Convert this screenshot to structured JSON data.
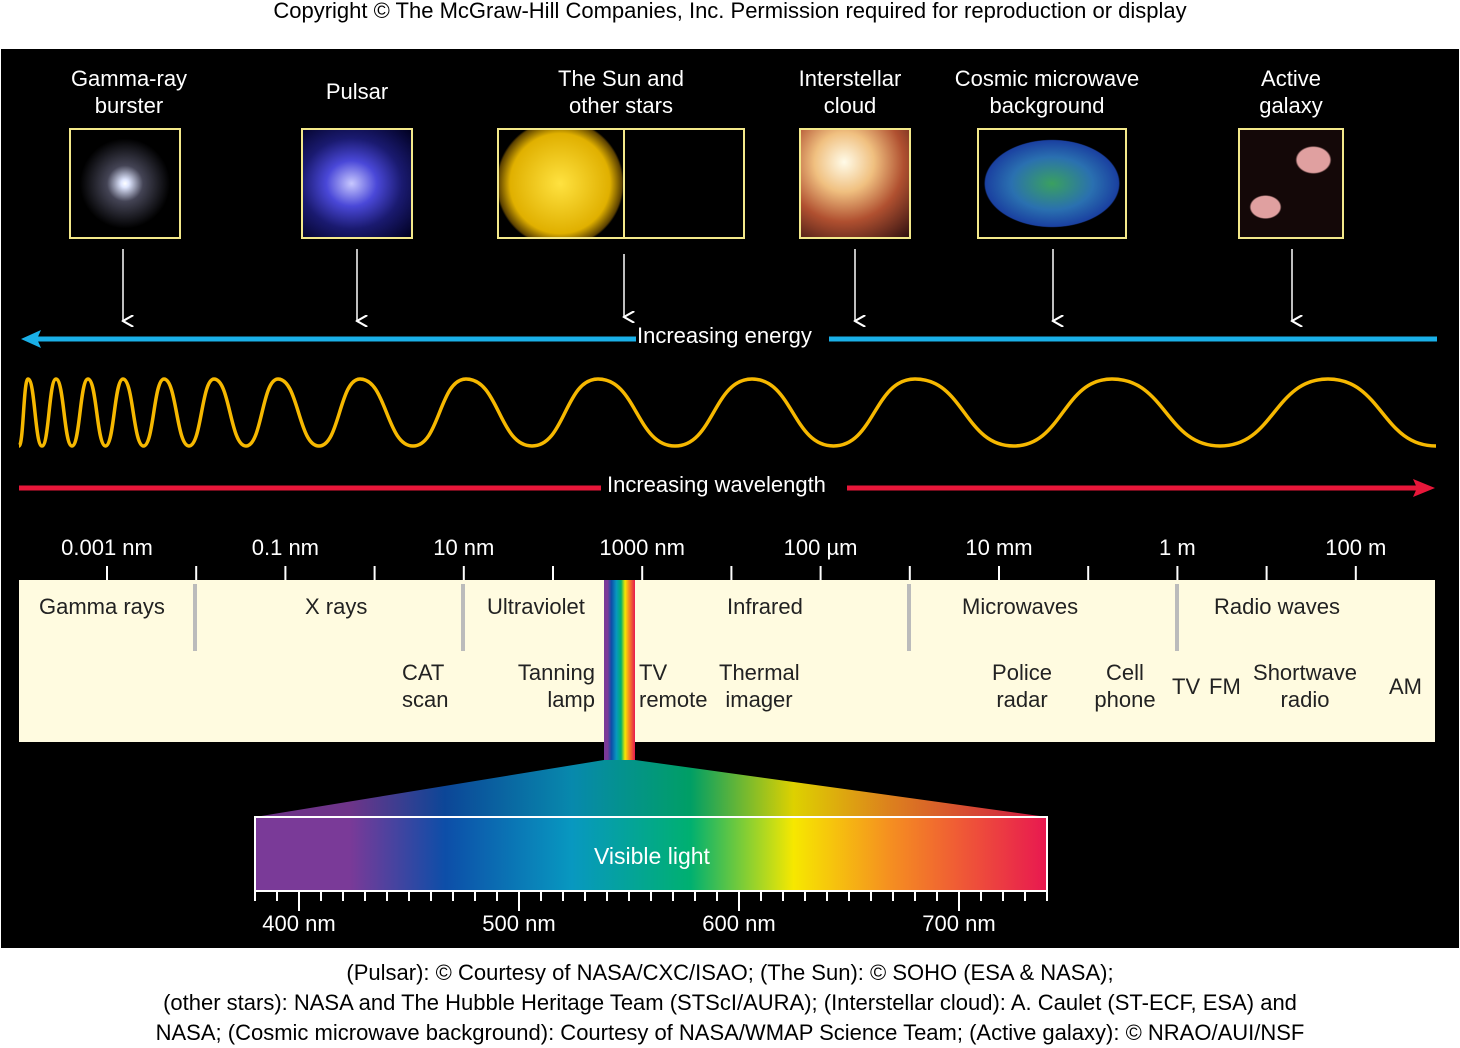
{
  "copyright": "Copyright © The McGraw-Hill Companies, Inc. Permission required for reproduction or display",
  "sources": [
    {
      "line1": "Gamma-ray",
      "line2": "burster"
    },
    {
      "line1": "Pulsar",
      "line2": ""
    },
    {
      "line1": "The Sun and",
      "line2": "other stars"
    },
    {
      "line1": "Interstellar",
      "line2": "cloud"
    },
    {
      "line1": "Cosmic microwave",
      "line2": "background"
    },
    {
      "line1": "Active",
      "line2": "galaxy"
    }
  ],
  "energy_label": "Increasing energy",
  "wavelength_label": "Increasing wavelength",
  "scale_ticks": [
    "0.001 nm",
    "0.1 nm",
    "10 nm",
    "1000 nm",
    "100 µm",
    "10 mm",
    "1 m",
    "100 m"
  ],
  "bands": [
    "Gamma rays",
    "X rays",
    "Ultraviolet",
    "Infrared",
    "Microwaves",
    "Radio waves"
  ],
  "applications": {
    "cat": [
      "CAT",
      "scan"
    ],
    "tanning": [
      "Tanning",
      "lamp"
    ],
    "tv_remote": [
      "TV",
      "remote"
    ],
    "thermal": [
      "Thermal",
      "imager"
    ],
    "police": [
      "Police",
      "radar"
    ],
    "cell": [
      "Cell",
      "phone"
    ],
    "tv": "TV",
    "fm": "FM",
    "shortwave": [
      "Shortwave",
      "radio"
    ],
    "am": "AM"
  },
  "visible_label": "Visible light",
  "visible_ticks": [
    "400 nm",
    "500 nm",
    "600 nm",
    "700 nm"
  ],
  "credits": [
    "(Pulsar): © Courtesy of NASA/CXC/ISAO; (The Sun): © SOHO (ESA & NASA);",
    "(other stars): NASA and The Hubble Heritage Team (STScI/AURA); (Interstellar cloud): A. Caulet (ST-ECF, ESA) and",
    "NASA; (Cosmic microwave background): Courtesy of NASA/WMAP Science Team; (Active galaxy): © NRAO/AUI/NSF"
  ],
  "colors": {
    "energy": "#1ab0e8",
    "wavelength": "#e8173a",
    "wave": "#f6b800",
    "band_bg": "#fffbe0"
  }
}
